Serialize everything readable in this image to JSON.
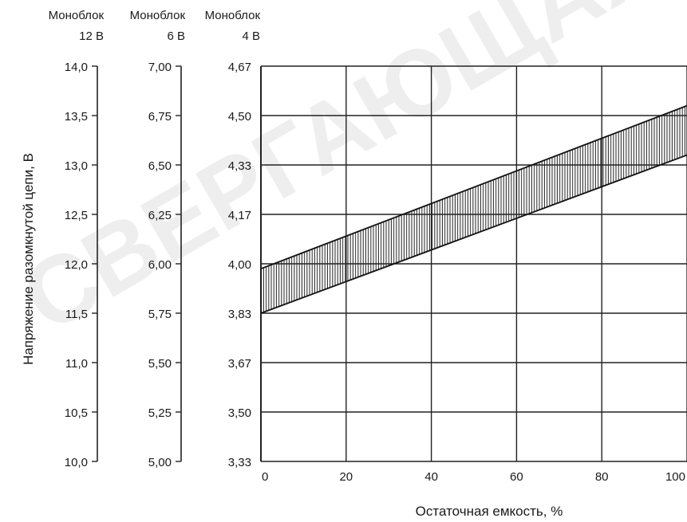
{
  "chart_data": {
    "type": "area",
    "xlabel": "Остаточная емкость, %",
    "ylabel": "Напряжение разомкнутой цепи, В",
    "x_ticks": [
      "0",
      "20",
      "40",
      "60",
      "80",
      "100"
    ],
    "xlim": [
      0,
      100
    ],
    "grid": true,
    "axes": [
      {
        "header_line1": "Моноблок",
        "header_line2": "12 В",
        "ticks": [
          "14,0",
          "13,5",
          "13,0",
          "12,5",
          "12,0",
          "11,5",
          "11,0",
          "10,5",
          "10,0"
        ],
        "range": [
          10.0,
          14.0
        ]
      },
      {
        "header_line1": "Моноблок",
        "header_line2": "6 В",
        "ticks": [
          "7,00",
          "6,75",
          "6,50",
          "6,25",
          "6,00",
          "5,75",
          "5,50",
          "5,25",
          "5,00"
        ],
        "range": [
          5.0,
          7.0
        ]
      },
      {
        "header_line1": "Моноблок",
        "header_line2": "4 В",
        "ticks": [
          "4,67",
          "4,50",
          "4,33",
          "4,17",
          "4,00",
          "3,83",
          "3,67",
          "3,50",
          "3,33"
        ],
        "range": [
          3.33,
          4.67
        ]
      }
    ],
    "series": [
      {
        "x": [
          0,
          100
        ],
        "lower_12v": [
          11.5,
          13.1
        ],
        "upper_12v": [
          11.95,
          13.6
        ]
      }
    ]
  }
}
